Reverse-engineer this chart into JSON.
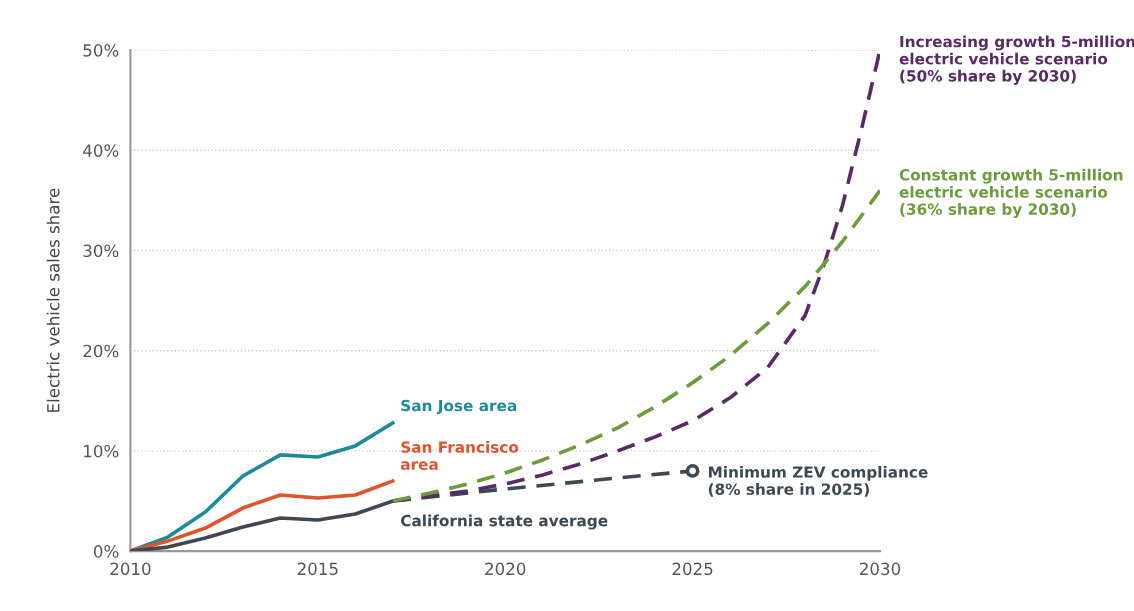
{
  "chart_data": {
    "type": "line",
    "ylabel": "Electric vehicle sales share",
    "xlim": [
      2010,
      2030
    ],
    "xticks": [
      2010,
      2015,
      2020,
      2025,
      2030
    ],
    "ylim": [
      0,
      50
    ],
    "yticks": [
      {
        "value": 0,
        "label": "0%"
      },
      {
        "value": 10,
        "label": "10%"
      },
      {
        "value": 20,
        "label": "20%"
      },
      {
        "value": 30,
        "label": "30%"
      },
      {
        "value": 40,
        "label": "40%"
      },
      {
        "value": 50,
        "label": "50%"
      }
    ],
    "grid": "y",
    "legend": false,
    "series": [
      {
        "name": "San Jose area",
        "color": "#1b8a9b",
        "line_style": "solid",
        "x": [
          2010,
          2011,
          2012,
          2013,
          2014,
          2015,
          2016,
          2017
        ],
        "values": [
          0,
          1.4,
          3.9,
          7.5,
          9.6,
          9.4,
          10.5,
          12.8
        ]
      },
      {
        "name": "San Francisco\narea",
        "color": "#e0532c",
        "line_style": "solid",
        "x": [
          2010,
          2011,
          2012,
          2013,
          2014,
          2015,
          2016,
          2017
        ],
        "values": [
          0,
          1.0,
          2.3,
          4.3,
          5.6,
          5.3,
          5.6,
          7.0
        ]
      },
      {
        "name": "California state average",
        "color": "#3d4852",
        "line_style": "solid",
        "x": [
          2010,
          2011,
          2012,
          2013,
          2014,
          2015,
          2016,
          2017
        ],
        "values": [
          0,
          0.4,
          1.3,
          2.4,
          3.3,
          3.1,
          3.7,
          5.0
        ]
      },
      {
        "name": "Minimum ZEV compliance\n(8% share in 2025)",
        "color": "#3d4852",
        "line_style": "dashed",
        "x": [
          2017,
          2020,
          2023,
          2025
        ],
        "values": [
          5.0,
          6.2,
          7.3,
          8.0
        ]
      },
      {
        "name": "Increasing growth 5-million\nelectric vehicle scenario\n(50% share by 2030)",
        "color": "#5a2a67",
        "line_style": "dashed",
        "x": [
          2017,
          2018,
          2019,
          2020,
          2021,
          2022,
          2023,
          2024,
          2025,
          2026,
          2027,
          2028,
          2028.5,
          2029,
          2029.5,
          2030
        ],
        "values": [
          5.0,
          5.5,
          6.0,
          6.7,
          7.6,
          8.7,
          10.0,
          11.4,
          13.0,
          15.3,
          18.3,
          23.5,
          28.5,
          34.5,
          42,
          50
        ]
      },
      {
        "name": "Constant growth 5-million\nelectric vehicle scenario\n(36% share by 2030)",
        "color": "#6b9b3a",
        "line_style": "dashed",
        "x": [
          2017,
          2018,
          2019,
          2020,
          2021,
          2022,
          2023,
          2024,
          2025,
          2026,
          2027,
          2028,
          2029,
          2030
        ],
        "values": [
          5.0,
          5.8,
          6.7,
          7.8,
          9.1,
          10.6,
          12.3,
          14.4,
          16.8,
          19.5,
          22.7,
          26.4,
          30.9,
          36
        ]
      },
      {
        "type": "scatter",
        "color": "#3d4852",
        "marker": "circle",
        "x": [
          2025
        ],
        "values": [
          8.0
        ]
      }
    ]
  }
}
